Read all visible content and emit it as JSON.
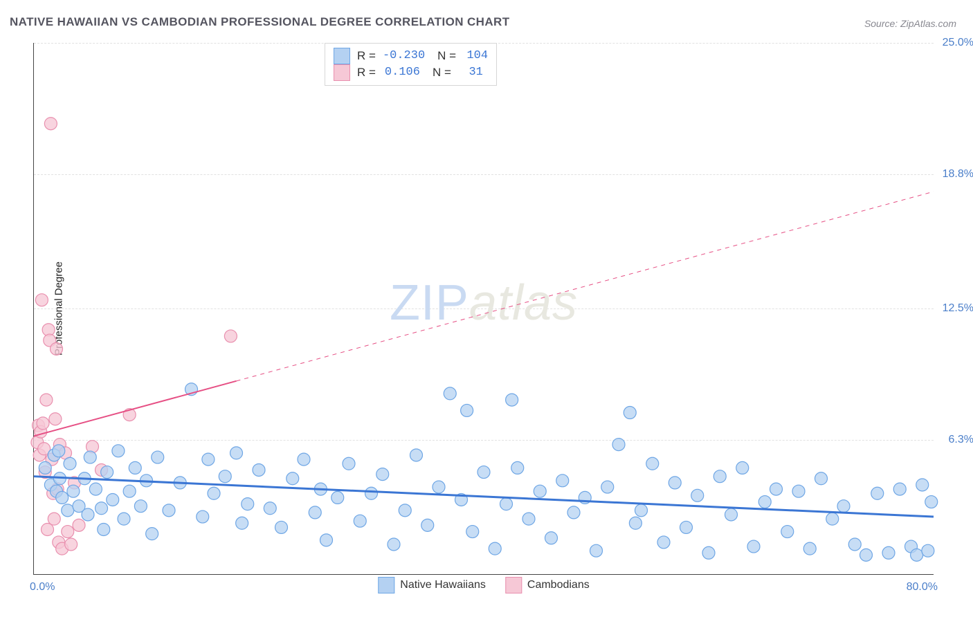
{
  "title": "NATIVE HAWAIIAN VS CAMBODIAN PROFESSIONAL DEGREE CORRELATION CHART",
  "source": "Source: ZipAtlas.com",
  "y_axis_label": "Professional Degree",
  "watermark_a": "ZIP",
  "watermark_b": "atlas",
  "chart": {
    "type": "scatter",
    "xlim": [
      0,
      80
    ],
    "ylim": [
      0,
      25
    ],
    "x_ticks": [
      {
        "v": 0,
        "label": "0.0%"
      },
      {
        "v": 80,
        "label": "80.0%"
      }
    ],
    "y_grid": [
      {
        "v": 6.3,
        "label": "6.3%"
      },
      {
        "v": 12.5,
        "label": "12.5%"
      },
      {
        "v": 18.8,
        "label": "18.8%"
      },
      {
        "v": 25.0,
        "label": "25.0%"
      }
    ],
    "background_color": "#ffffff",
    "grid_color": "#e1e1e1",
    "axis_color": "#444444",
    "tick_text_color": "#4a7ec9",
    "series": [
      {
        "id": "hawaiians",
        "label": "Native Hawaiians",
        "color_fill": "#b4d1f2",
        "color_stroke": "#6ea6e5",
        "marker_radius": 9,
        "marker_opacity": 0.75,
        "R": "-0.230",
        "N": "104",
        "regression": {
          "x1": 0,
          "y1": 4.6,
          "x2": 80,
          "y2": 2.7,
          "solid_end_x": 80
        },
        "line_color": "#3b76d4",
        "line_width": 3,
        "points": [
          [
            1.0,
            5.0
          ],
          [
            1.5,
            4.2
          ],
          [
            1.8,
            5.6
          ],
          [
            2.0,
            3.9
          ],
          [
            2.2,
            5.8
          ],
          [
            2.3,
            4.5
          ],
          [
            2.5,
            3.6
          ],
          [
            3.0,
            3.0
          ],
          [
            3.2,
            5.2
          ],
          [
            3.5,
            3.9
          ],
          [
            4.0,
            3.2
          ],
          [
            4.5,
            4.5
          ],
          [
            4.8,
            2.8
          ],
          [
            5.0,
            5.5
          ],
          [
            5.5,
            4.0
          ],
          [
            6.0,
            3.1
          ],
          [
            6.2,
            2.1
          ],
          [
            6.5,
            4.8
          ],
          [
            7.0,
            3.5
          ],
          [
            7.5,
            5.8
          ],
          [
            8.0,
            2.6
          ],
          [
            8.5,
            3.9
          ],
          [
            9.0,
            5.0
          ],
          [
            9.5,
            3.2
          ],
          [
            10.0,
            4.4
          ],
          [
            10.5,
            1.9
          ],
          [
            11.0,
            5.5
          ],
          [
            12.0,
            3.0
          ],
          [
            13.0,
            4.3
          ],
          [
            14.0,
            8.7
          ],
          [
            15.0,
            2.7
          ],
          [
            15.5,
            5.4
          ],
          [
            16.0,
            3.8
          ],
          [
            17.0,
            4.6
          ],
          [
            18.0,
            5.7
          ],
          [
            18.5,
            2.4
          ],
          [
            19.0,
            3.3
          ],
          [
            20.0,
            4.9
          ],
          [
            21.0,
            3.1
          ],
          [
            22.0,
            2.2
          ],
          [
            23.0,
            4.5
          ],
          [
            24.0,
            5.4
          ],
          [
            25.0,
            2.9
          ],
          [
            25.5,
            4.0
          ],
          [
            26.0,
            1.6
          ],
          [
            27.0,
            3.6
          ],
          [
            28.0,
            5.2
          ],
          [
            29.0,
            2.5
          ],
          [
            30.0,
            3.8
          ],
          [
            31.0,
            4.7
          ],
          [
            32.0,
            1.4
          ],
          [
            33.0,
            3.0
          ],
          [
            34.0,
            5.6
          ],
          [
            35.0,
            2.3
          ],
          [
            36.0,
            4.1
          ],
          [
            37.0,
            8.5
          ],
          [
            38.5,
            7.7
          ],
          [
            38.0,
            3.5
          ],
          [
            39.0,
            2.0
          ],
          [
            40.0,
            4.8
          ],
          [
            41.0,
            1.2
          ],
          [
            42.0,
            3.3
          ],
          [
            42.5,
            8.2
          ],
          [
            43.0,
            5.0
          ],
          [
            44.0,
            2.6
          ],
          [
            45.0,
            3.9
          ],
          [
            46.0,
            1.7
          ],
          [
            47.0,
            4.4
          ],
          [
            48.0,
            2.9
          ],
          [
            49.0,
            3.6
          ],
          [
            50.0,
            1.1
          ],
          [
            51.0,
            4.1
          ],
          [
            52.0,
            6.1
          ],
          [
            53.0,
            7.6
          ],
          [
            53.5,
            2.4
          ],
          [
            54.0,
            3.0
          ],
          [
            55.0,
            5.2
          ],
          [
            56.0,
            1.5
          ],
          [
            57.0,
            4.3
          ],
          [
            58.0,
            2.2
          ],
          [
            59.0,
            3.7
          ],
          [
            60.0,
            1.0
          ],
          [
            61.0,
            4.6
          ],
          [
            62.0,
            2.8
          ],
          [
            63.0,
            5.0
          ],
          [
            64.0,
            1.3
          ],
          [
            65.0,
            3.4
          ],
          [
            66.0,
            4.0
          ],
          [
            67.0,
            2.0
          ],
          [
            68.0,
            3.9
          ],
          [
            69.0,
            1.2
          ],
          [
            70.0,
            4.5
          ],
          [
            71.0,
            2.6
          ],
          [
            72.0,
            3.2
          ],
          [
            73.0,
            1.4
          ],
          [
            74.0,
            0.9
          ],
          [
            75.0,
            3.8
          ],
          [
            76.0,
            1.0
          ],
          [
            77.0,
            4.0
          ],
          [
            78.0,
            1.3
          ],
          [
            78.5,
            0.9
          ],
          [
            79.0,
            4.2
          ],
          [
            79.5,
            1.1
          ],
          [
            79.8,
            3.4
          ]
        ]
      },
      {
        "id": "cambodians",
        "label": "Cambodians",
        "color_fill": "#f6c8d6",
        "color_stroke": "#e98fae",
        "marker_radius": 9,
        "marker_opacity": 0.78,
        "R": "0.106",
        "N": "31",
        "regression": {
          "x1": 0,
          "y1": 6.5,
          "x2": 80,
          "y2": 18.0,
          "solid_end_x": 18
        },
        "line_color": "#e64f84",
        "line_width": 2,
        "points": [
          [
            0.3,
            6.2
          ],
          [
            0.4,
            7.0
          ],
          [
            0.5,
            5.6
          ],
          [
            0.6,
            6.7
          ],
          [
            0.7,
            12.9
          ],
          [
            0.8,
            7.1
          ],
          [
            0.9,
            5.9
          ],
          [
            1.0,
            4.8
          ],
          [
            1.1,
            8.2
          ],
          [
            1.2,
            2.1
          ],
          [
            1.3,
            11.5
          ],
          [
            1.4,
            11.0
          ],
          [
            1.5,
            21.2
          ],
          [
            1.6,
            5.4
          ],
          [
            1.7,
            3.8
          ],
          [
            1.8,
            2.6
          ],
          [
            1.9,
            7.3
          ],
          [
            2.0,
            10.6
          ],
          [
            2.1,
            4.0
          ],
          [
            2.2,
            1.5
          ],
          [
            2.3,
            6.1
          ],
          [
            2.5,
            1.2
          ],
          [
            2.8,
            5.7
          ],
          [
            3.0,
            2.0
          ],
          [
            3.3,
            1.4
          ],
          [
            3.6,
            4.3
          ],
          [
            4.0,
            2.3
          ],
          [
            5.2,
            6.0
          ],
          [
            6.0,
            4.9
          ],
          [
            8.5,
            7.5
          ],
          [
            17.5,
            11.2
          ]
        ]
      }
    ]
  },
  "legend_bottom": [
    {
      "label": "Native Hawaiians",
      "fill": "#b4d1f2",
      "stroke": "#6ea6e5"
    },
    {
      "label": "Cambodians",
      "fill": "#f6c8d6",
      "stroke": "#e98fae"
    }
  ]
}
